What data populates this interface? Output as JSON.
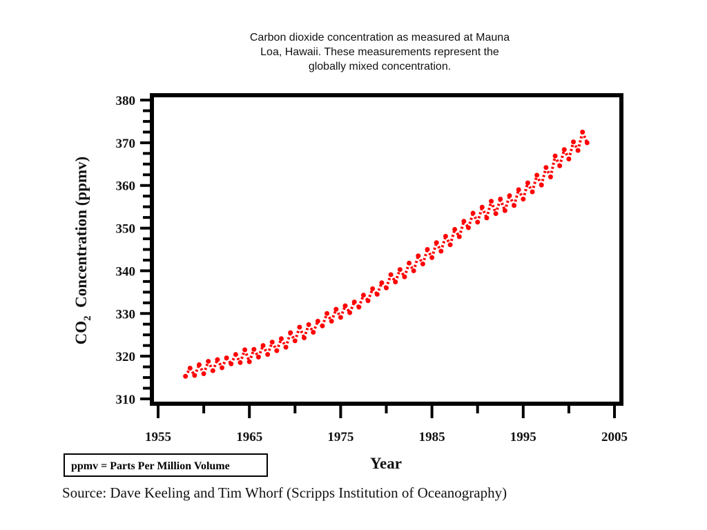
{
  "chart_data": {
    "type": "scatter",
    "title_lines": [
      "Carbon dioxide concentration as measured at Mauna",
      "Loa, Hawaii. These measurements represent the",
      "globally mixed concentration."
    ],
    "xlabel": "Year",
    "ylabel_main": "CO",
    "ylabel_sub": "2",
    "ylabel_rest": "  Concentration (ppmv)",
    "xlim": [
      1955,
      2005
    ],
    "ylim": [
      310,
      380
    ],
    "x_ticks": [
      1955,
      1965,
      1975,
      1985,
      1995,
      2005
    ],
    "y_ticks": [
      310,
      320,
      330,
      340,
      350,
      360,
      370,
      380
    ],
    "marker_color": "#ff0000",
    "grid": false,
    "series": [
      {
        "x": [
          1958.0,
          1958.5,
          1959.0,
          1959.5,
          1960.0,
          1960.5,
          1961.0,
          1961.5,
          1962.0,
          1962.5,
          1963.0,
          1963.5,
          1964.0,
          1964.5,
          1965.0,
          1965.5,
          1966.0,
          1966.5,
          1967.0,
          1967.5,
          1968.0,
          1968.5,
          1969.0,
          1969.5,
          1970.0,
          1970.5,
          1971.0,
          1971.5,
          1972.0,
          1972.5,
          1973.0,
          1973.5,
          1974.0,
          1974.5,
          1975.0,
          1975.5,
          1976.0,
          1976.5,
          1977.0,
          1977.5,
          1978.0,
          1978.5,
          1979.0,
          1979.5,
          1980.0,
          1980.5,
          1981.0,
          1981.5,
          1982.0,
          1982.5,
          1983.0,
          1983.5,
          1984.0,
          1984.5,
          1985.0,
          1985.5,
          1986.0,
          1986.5,
          1987.0,
          1987.5,
          1988.0,
          1988.5,
          1989.0,
          1989.5,
          1990.0,
          1990.5,
          1991.0,
          1991.5,
          1992.0,
          1992.5,
          1993.0,
          1993.5,
          1994.0,
          1994.5,
          1995.0,
          1995.5,
          1996.0,
          1996.5,
          1997.0,
          1997.5,
          1998.0,
          1998.5,
          1999.0,
          1999.5,
          2000.0,
          2000.5,
          2001.0,
          2001.5,
          2002.0
        ],
        "y": [
          315.3,
          317.2,
          315.5,
          318.0,
          315.9,
          318.8,
          316.6,
          319.2,
          317.3,
          319.6,
          318.2,
          320.4,
          318.5,
          321.5,
          318.7,
          321.6,
          319.8,
          322.5,
          320.4,
          323.3,
          321.3,
          324.1,
          322.1,
          325.5,
          323.6,
          326.8,
          324.3,
          327.4,
          325.6,
          328.2,
          327.1,
          330.0,
          328.2,
          331.0,
          329.1,
          331.8,
          330.2,
          332.7,
          331.5,
          334.3,
          333.0,
          335.8,
          334.5,
          337.2,
          336.0,
          339.1,
          337.4,
          340.3,
          338.6,
          341.8,
          340.0,
          343.5,
          341.6,
          345.0,
          343.1,
          346.6,
          344.6,
          348.1,
          346.1,
          349.7,
          348.0,
          351.6,
          350.1,
          353.5,
          351.4,
          354.9,
          352.4,
          356.3,
          353.4,
          356.8,
          354.1,
          357.6,
          355.3,
          359.0,
          356.8,
          360.6,
          358.5,
          362.4,
          360.1,
          364.2,
          362.0,
          366.9,
          364.6,
          368.4,
          366.2,
          370.2,
          368.2,
          372.5,
          370.0
        ]
      }
    ]
  },
  "footnote": {
    "box_text": "ppmv = Parts Per Million Volume",
    "source": "Source: Dave Keeling and Tim Whorf (Scripps Institution of Oceanography)"
  }
}
